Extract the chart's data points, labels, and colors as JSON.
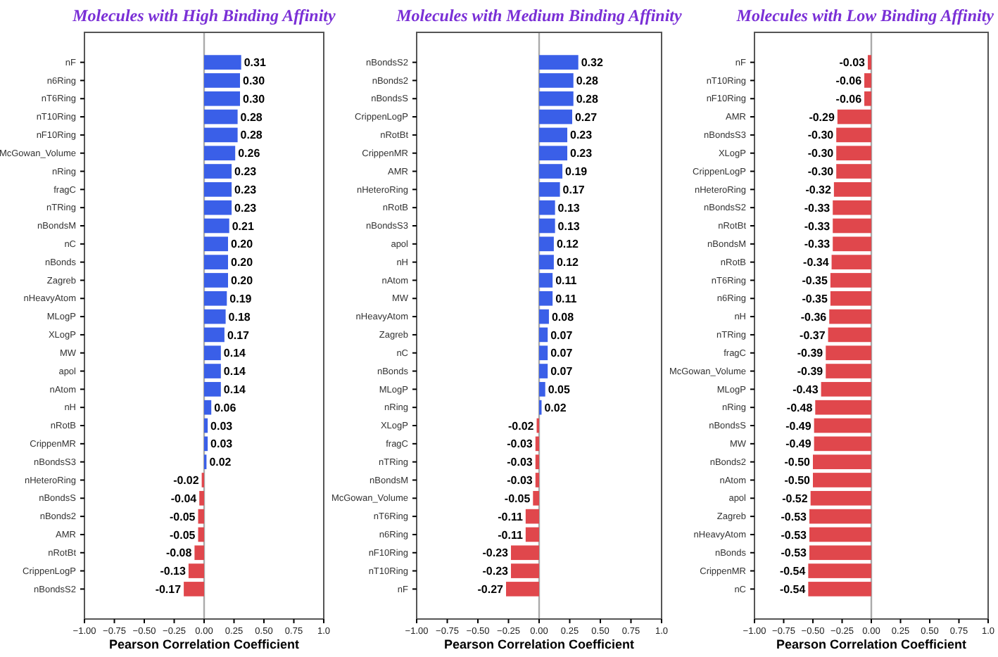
{
  "chart_data": [
    {
      "type": "bar",
      "orientation": "horizontal",
      "title": "Molecules with High Binding Affinity",
      "xlabel": "Pearson Correlation Coefficient",
      "categories": [
        "nF",
        "n6Ring",
        "nT6Ring",
        "nT10Ring",
        "nF10Ring",
        "McGowan_Volume",
        "nRing",
        "fragC",
        "nTRing",
        "nBondsM",
        "nC",
        "nBonds",
        "Zagreb",
        "nHeavyAtom",
        "MLogP",
        "XLogP",
        "MW",
        "apol",
        "nAtom",
        "nH",
        "nRotB",
        "CrippenMR",
        "nBondsS3",
        "nHeteroRing",
        "nBondsS",
        "nBonds2",
        "AMR",
        "nRotBt",
        "CrippenLogP",
        "nBondsS2"
      ],
      "values": [
        0.31,
        0.3,
        0.3,
        0.28,
        0.28,
        0.26,
        0.23,
        0.23,
        0.23,
        0.21,
        0.2,
        0.2,
        0.2,
        0.19,
        0.18,
        0.17,
        0.14,
        0.14,
        0.14,
        0.06,
        0.03,
        0.03,
        0.02,
        -0.02,
        -0.04,
        -0.05,
        -0.05,
        -0.08,
        -0.13,
        -0.17
      ],
      "colors": [
        "#3a5fe8",
        "#3a5fe8",
        "#3a5fe8",
        "#3a5fe8",
        "#3a5fe8",
        "#3a5fe8",
        "#3a5fe8",
        "#3a5fe8",
        "#3a5fe8",
        "#3a5fe8",
        "#3a5fe8",
        "#3a5fe8",
        "#3a5fe8",
        "#3a5fe8",
        "#3a5fe8",
        "#3a5fe8",
        "#3a5fe8",
        "#3a5fe8",
        "#3a5fe8",
        "#3a5fe8",
        "#3a5fe8",
        "#3a5fe8",
        "#3a5fe8",
        "#e0474c",
        "#e0474c",
        "#e0474c",
        "#e0474c",
        "#e0474c",
        "#e0474c",
        "#e0474c"
      ],
      "xlim": [
        -1,
        1
      ],
      "xticks": [
        {
          "value": -1,
          "label": "−1.00"
        },
        {
          "value": -0.75,
          "label": "−0.75"
        },
        {
          "value": -0.5,
          "label": "−0.50"
        },
        {
          "value": -0.25,
          "label": "−0.25"
        },
        {
          "value": 0,
          "label": "0.00"
        },
        {
          "value": 0.25,
          "label": "0.25"
        },
        {
          "value": 0.5,
          "label": "0.50"
        },
        {
          "value": 0.75,
          "label": "0.75"
        },
        {
          "value": 1,
          "label": "1.0"
        }
      ],
      "ref_lines": [
        {
          "axis": "x",
          "value": 0,
          "color": "#aaaaaa"
        }
      ],
      "value_labels": [
        "0.31",
        "0.30",
        "0.30",
        "0.28",
        "0.28",
        "0.26",
        "0.23",
        "0.23",
        "0.23",
        "0.21",
        "0.20",
        "0.20",
        "0.20",
        "0.19",
        "0.18",
        "0.17",
        "0.14",
        "0.14",
        "0.14",
        "0.06",
        "0.03",
        "0.03",
        "0.02",
        "-0.02",
        "-0.04",
        "-0.05",
        "-0.05",
        "-0.08",
        "-0.13",
        "-0.17"
      ]
    },
    {
      "type": "bar",
      "orientation": "horizontal",
      "title": "Molecules with Medium Binding Affinity",
      "xlabel": "Pearson Correlation Coefficient",
      "categories": [
        "nBondsS2",
        "nBonds2",
        "nBondsS",
        "CrippenLogP",
        "nRotBt",
        "CrippenMR",
        "AMR",
        "nHeteroRing",
        "nRotB",
        "nBondsS3",
        "apol",
        "nH",
        "nAtom",
        "MW",
        "nHeavyAtom",
        "Zagreb",
        "nC",
        "nBonds",
        "MLogP",
        "nRing",
        "XLogP",
        "fragC",
        "nTRing",
        "nBondsM",
        "McGowan_Volume",
        "nT6Ring",
        "n6Ring",
        "nF10Ring",
        "nT10Ring",
        "nF"
      ],
      "values": [
        0.32,
        0.28,
        0.28,
        0.27,
        0.23,
        0.23,
        0.19,
        0.17,
        0.13,
        0.13,
        0.12,
        0.12,
        0.11,
        0.11,
        0.08,
        0.07,
        0.07,
        0.07,
        0.05,
        0.02,
        -0.02,
        -0.03,
        -0.03,
        -0.03,
        -0.05,
        -0.11,
        -0.11,
        -0.23,
        -0.23,
        -0.27
      ],
      "colors": [
        "#3a5fe8",
        "#3a5fe8",
        "#3a5fe8",
        "#3a5fe8",
        "#3a5fe8",
        "#3a5fe8",
        "#3a5fe8",
        "#3a5fe8",
        "#3a5fe8",
        "#3a5fe8",
        "#3a5fe8",
        "#3a5fe8",
        "#3a5fe8",
        "#3a5fe8",
        "#3a5fe8",
        "#3a5fe8",
        "#3a5fe8",
        "#3a5fe8",
        "#3a5fe8",
        "#3a5fe8",
        "#e0474c",
        "#e0474c",
        "#e0474c",
        "#e0474c",
        "#e0474c",
        "#e0474c",
        "#e0474c",
        "#e0474c",
        "#e0474c",
        "#e0474c"
      ],
      "xlim": [
        -1,
        1
      ],
      "xticks": [
        {
          "value": -1,
          "label": "−1.00"
        },
        {
          "value": -0.75,
          "label": "−0.75"
        },
        {
          "value": -0.5,
          "label": "−0.50"
        },
        {
          "value": -0.25,
          "label": "−0.25"
        },
        {
          "value": 0,
          "label": "0.00"
        },
        {
          "value": 0.25,
          "label": "0.25"
        },
        {
          "value": 0.5,
          "label": "0.50"
        },
        {
          "value": 0.75,
          "label": "0.75"
        },
        {
          "value": 1,
          "label": "1.0"
        }
      ],
      "ref_lines": [
        {
          "axis": "x",
          "value": 0,
          "color": "#aaaaaa"
        }
      ],
      "value_labels": [
        "0.32",
        "0.28",
        "0.28",
        "0.27",
        "0.23",
        "0.23",
        "0.19",
        "0.17",
        "0.13",
        "0.13",
        "0.12",
        "0.12",
        "0.11",
        "0.11",
        "0.08",
        "0.07",
        "0.07",
        "0.07",
        "0.05",
        "0.02",
        "-0.02",
        "-0.03",
        "-0.03",
        "-0.03",
        "-0.05",
        "-0.11",
        "-0.11",
        "-0.23",
        "-0.23",
        "-0.27"
      ]
    },
    {
      "type": "bar",
      "orientation": "horizontal",
      "title": "Molecules with Low Binding Affinity",
      "xlabel": "Pearson Correlation Coefficient",
      "categories": [
        "nF",
        "nT10Ring",
        "nF10Ring",
        "AMR",
        "nBondsS3",
        "XLogP",
        "CrippenLogP",
        "nHeteroRing",
        "nBondsS2",
        "nRotBt",
        "nBondsM",
        "nRotB",
        "nT6Ring",
        "n6Ring",
        "nH",
        "nTRing",
        "fragC",
        "McGowan_Volume",
        "MLogP",
        "nRing",
        "nBondsS",
        "MW",
        "nBonds2",
        "nAtom",
        "apol",
        "Zagreb",
        "nHeavyAtom",
        "nBonds",
        "CrippenMR",
        "nC"
      ],
      "values": [
        -0.03,
        -0.06,
        -0.06,
        -0.29,
        -0.3,
        -0.3,
        -0.3,
        -0.32,
        -0.33,
        -0.33,
        -0.33,
        -0.34,
        -0.35,
        -0.35,
        -0.36,
        -0.37,
        -0.39,
        -0.39,
        -0.43,
        -0.48,
        -0.49,
        -0.49,
        -0.5,
        -0.5,
        -0.52,
        -0.53,
        -0.53,
        -0.53,
        -0.54,
        -0.54
      ],
      "colors": [
        "#e0474c",
        "#e0474c",
        "#e0474c",
        "#e0474c",
        "#e0474c",
        "#e0474c",
        "#e0474c",
        "#e0474c",
        "#e0474c",
        "#e0474c",
        "#e0474c",
        "#e0474c",
        "#e0474c",
        "#e0474c",
        "#e0474c",
        "#e0474c",
        "#e0474c",
        "#e0474c",
        "#e0474c",
        "#e0474c",
        "#e0474c",
        "#e0474c",
        "#e0474c",
        "#e0474c",
        "#e0474c",
        "#e0474c",
        "#e0474c",
        "#e0474c",
        "#e0474c",
        "#e0474c"
      ],
      "xlim": [
        -1,
        1
      ],
      "xticks": [
        {
          "value": -1,
          "label": "−1.00"
        },
        {
          "value": -0.75,
          "label": "−0.75"
        },
        {
          "value": -0.5,
          "label": "−0.50"
        },
        {
          "value": -0.25,
          "label": "−0.25"
        },
        {
          "value": 0,
          "label": "0.00"
        },
        {
          "value": 0.25,
          "label": "0.25"
        },
        {
          "value": 0.5,
          "label": "0.50"
        },
        {
          "value": 0.75,
          "label": "0.75"
        },
        {
          "value": 1,
          "label": "1.0"
        }
      ],
      "ref_lines": [
        {
          "axis": "x",
          "value": 0,
          "color": "#aaaaaa"
        }
      ],
      "value_labels": [
        "-0.03",
        "-0.06",
        "-0.06",
        "-0.29",
        "-0.30",
        "-0.30",
        "-0.30",
        "-0.32",
        "-0.33",
        "-0.33",
        "-0.33",
        "-0.34",
        "-0.35",
        "-0.35",
        "-0.36",
        "-0.37",
        "-0.39",
        "-0.39",
        "-0.43",
        "-0.48",
        "-0.49",
        "-0.49",
        "-0.50",
        "-0.50",
        "-0.52",
        "-0.53",
        "-0.53",
        "-0.53",
        "-0.54",
        "-0.54"
      ]
    }
  ]
}
